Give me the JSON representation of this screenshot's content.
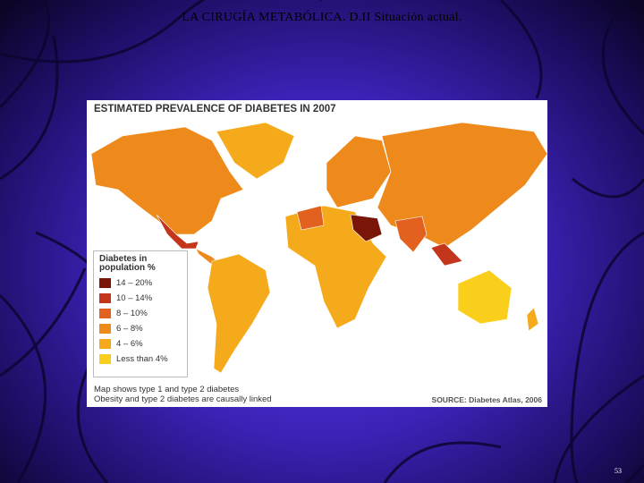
{
  "slide_title": "LA CIRUGÍA METABÓLICA. D.II   Situación actual.",
  "map": {
    "title": "ESTIMATED PREVALENCE OF DIABETES IN 2007",
    "legend": {
      "title": "Diabetes in population %",
      "items": [
        {
          "label": "14 – 20%",
          "color": "#7a1608"
        },
        {
          "label": "10 – 14%",
          "color": "#c4361b"
        },
        {
          "label": "8 – 10%",
          "color": "#e2611e"
        },
        {
          "label": "6 – 8%",
          "color": "#ee8a1c"
        },
        {
          "label": "4 – 6%",
          "color": "#f5aa1c"
        },
        {
          "label": "Less than 4%",
          "color": "#f9cf1b"
        }
      ]
    },
    "notes": [
      "Map shows type 1 and type 2 diabetes",
      "Obesity and type 2 diabetes are causally linked"
    ],
    "source": "SOURCE: Diabetes Atlas, 2006"
  },
  "page_number": "53"
}
